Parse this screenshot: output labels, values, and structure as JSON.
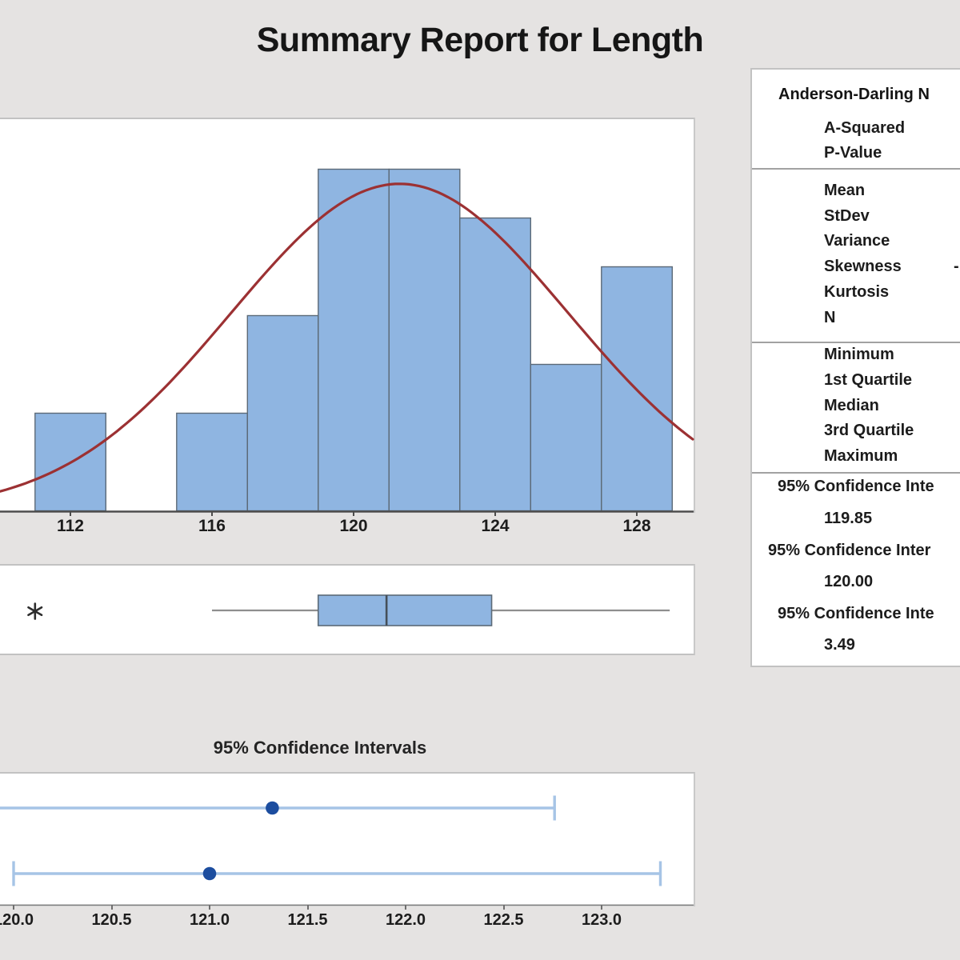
{
  "title": "Summary Report for Length",
  "colors": {
    "background": "#e5e3e2",
    "panel": "#ffffff",
    "panel_border": "#c2c2c2",
    "bar_fill": "#8fb5e1",
    "bar_stroke": "#5c6a77",
    "fit_curve": "#9c3133",
    "axis_line": "#4c4c4c",
    "whisker": "#8e8e8e",
    "box_median": "#454f59",
    "outlier": "#2d2d2d",
    "ci_line": "#a6c4e6",
    "ci_dot": "#1c4d9f",
    "text": "#1c1c1c"
  },
  "chart_data": [
    {
      "type": "histogram",
      "name": "histogram-of-length-with-normal-fit",
      "bin_centers": [
        112,
        114,
        116,
        118,
        120,
        122,
        124,
        126,
        128
      ],
      "bin_width": 2,
      "frequencies": [
        2,
        0,
        2,
        4,
        7,
        7,
        6,
        3,
        5
      ],
      "x_tick_values": [
        112,
        116,
        120,
        124,
        128
      ],
      "x_tick_labels": [
        "112",
        "116",
        "120",
        "124",
        "128"
      ],
      "x_visible_range": [
        110.0,
        129.6
      ],
      "grid": false,
      "fit_curve": {
        "type": "normal",
        "mean": 121.3,
        "sd": 4.75,
        "peak_frequency": 6.7
      }
    },
    {
      "type": "boxplot",
      "name": "boxplot-of-length",
      "orientation": "horizontal",
      "outliers": [
        111.0
      ],
      "whisker_low": 116.0,
      "q1": 119.0,
      "median": 120.93,
      "q3": 123.9,
      "whisker_high": 128.93,
      "x_visible_range": [
        110.0,
        129.6
      ]
    },
    {
      "type": "interval_plot",
      "name": "confidence-interval-plot",
      "title": "95% Confidence Intervals",
      "x_tick_values": [
        120.0,
        120.5,
        121.0,
        121.5,
        122.0,
        122.5,
        123.0
      ],
      "x_tick_labels": [
        "120.0",
        "120.5",
        "121.0",
        "121.5",
        "122.0",
        "122.5",
        "123.0"
      ],
      "x_visible_range": [
        119.93,
        123.47
      ],
      "series": [
        {
          "name": "Mean",
          "point": 121.32,
          "lower": 119.85,
          "upper": 122.76
        },
        {
          "name": "Median",
          "point": 121.0,
          "lower": 120.0,
          "upper": 123.3
        }
      ]
    },
    {
      "type": "table",
      "name": "summary-statistics-table",
      "header": "Anderson-Darling N",
      "group1_labels": [
        "A-Squared",
        "P-Value"
      ],
      "group2_labels": [
        "Mean",
        "StDev",
        "Variance",
        "Skewness",
        "Kurtosis",
        "N"
      ],
      "skewness_partial_value": "-",
      "group3_labels": [
        "Minimum",
        "1st Quartile",
        "Median",
        "3rd Quartile",
        "Maximum"
      ],
      "ci_rows": [
        {
          "header": "95% Confidence Inte",
          "value": "119.85"
        },
        {
          "header": "95% Confidence Inter",
          "value": "120.00"
        },
        {
          "header": "95% Confidence Inte",
          "value": "3.49"
        }
      ]
    }
  ]
}
